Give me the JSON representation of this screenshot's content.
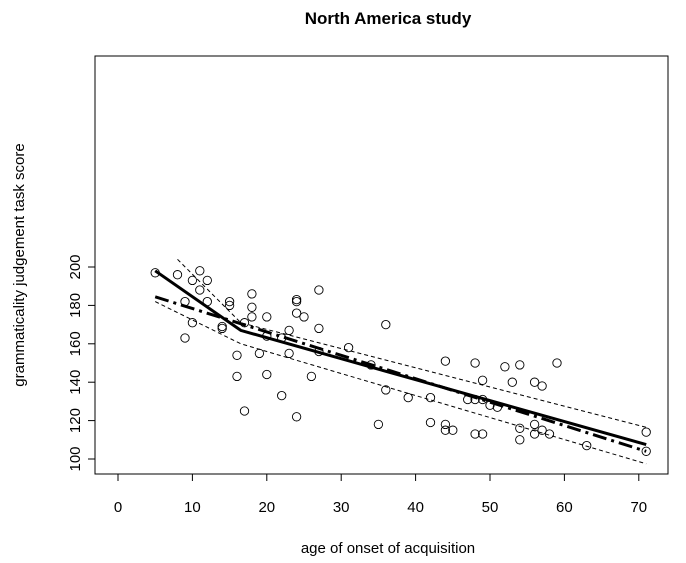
{
  "chart_data": {
    "type": "scatter",
    "title": "North America study",
    "xlabel": "age of onset of acquisition",
    "ylabel": "grammaticality judgement task score",
    "xlim": [
      0,
      73
    ],
    "ylim": [
      98,
      202
    ],
    "x_ticks": [
      "0",
      "10",
      "20",
      "30",
      "40",
      "50",
      "60",
      "70"
    ],
    "y_ticks": [
      "100",
      "120",
      "140",
      "160",
      "180",
      "200"
    ],
    "grid": false,
    "legend": "none",
    "points": [
      {
        "x": 5,
        "y": 197
      },
      {
        "x": 8,
        "y": 196
      },
      {
        "x": 9,
        "y": 182
      },
      {
        "x": 9,
        "y": 163
      },
      {
        "x": 10,
        "y": 193
      },
      {
        "x": 10,
        "y": 171
      },
      {
        "x": 11,
        "y": 198
      },
      {
        "x": 11,
        "y": 188
      },
      {
        "x": 12,
        "y": 193
      },
      {
        "x": 12,
        "y": 182
      },
      {
        "x": 14,
        "y": 168
      },
      {
        "x": 14,
        "y": 169
      },
      {
        "x": 15,
        "y": 182
      },
      {
        "x": 15,
        "y": 180
      },
      {
        "x": 16,
        "y": 154
      },
      {
        "x": 16,
        "y": 143
      },
      {
        "x": 17,
        "y": 171
      },
      {
        "x": 17,
        "y": 125
      },
      {
        "x": 18,
        "y": 186
      },
      {
        "x": 18,
        "y": 179
      },
      {
        "x": 18,
        "y": 174
      },
      {
        "x": 19,
        "y": 155
      },
      {
        "x": 20,
        "y": 174
      },
      {
        "x": 20,
        "y": 164
      },
      {
        "x": 20,
        "y": 144
      },
      {
        "x": 22,
        "y": 163
      },
      {
        "x": 22,
        "y": 133
      },
      {
        "x": 23,
        "y": 167
      },
      {
        "x": 23,
        "y": 155
      },
      {
        "x": 24,
        "y": 183
      },
      {
        "x": 24,
        "y": 182
      },
      {
        "x": 24,
        "y": 176
      },
      {
        "x": 24,
        "y": 122
      },
      {
        "x": 25,
        "y": 174
      },
      {
        "x": 26,
        "y": 143
      },
      {
        "x": 27,
        "y": 188
      },
      {
        "x": 27,
        "y": 168
      },
      {
        "x": 27,
        "y": 156
      },
      {
        "x": 31,
        "y": 158
      },
      {
        "x": 34,
        "y": 149
      },
      {
        "x": 35,
        "y": 118
      },
      {
        "x": 36,
        "y": 170
      },
      {
        "x": 36,
        "y": 136
      },
      {
        "x": 39,
        "y": 132
      },
      {
        "x": 42,
        "y": 132
      },
      {
        "x": 42,
        "y": 119
      },
      {
        "x": 44,
        "y": 151
      },
      {
        "x": 44,
        "y": 118
      },
      {
        "x": 44,
        "y": 115
      },
      {
        "x": 45,
        "y": 115
      },
      {
        "x": 47,
        "y": 131
      },
      {
        "x": 48,
        "y": 150
      },
      {
        "x": 48,
        "y": 131
      },
      {
        "x": 48,
        "y": 113
      },
      {
        "x": 49,
        "y": 141
      },
      {
        "x": 49,
        "y": 131
      },
      {
        "x": 49,
        "y": 113
      },
      {
        "x": 50,
        "y": 128
      },
      {
        "x": 51,
        "y": 127
      },
      {
        "x": 52,
        "y": 148
      },
      {
        "x": 53,
        "y": 140
      },
      {
        "x": 54,
        "y": 149
      },
      {
        "x": 54,
        "y": 116
      },
      {
        "x": 54,
        "y": 110
      },
      {
        "x": 56,
        "y": 140
      },
      {
        "x": 56,
        "y": 118
      },
      {
        "x": 56,
        "y": 113
      },
      {
        "x": 57,
        "y": 138
      },
      {
        "x": 57,
        "y": 115
      },
      {
        "x": 58,
        "y": 113
      },
      {
        "x": 59,
        "y": 150
      },
      {
        "x": 63,
        "y": 107
      },
      {
        "x": 71,
        "y": 114
      },
      {
        "x": 71,
        "y": 104
      }
    ],
    "series": [
      {
        "style": "solid",
        "width": 3,
        "x": [
          5,
          16.5,
          71
        ],
        "y": [
          198,
          167,
          107.5
        ]
      },
      {
        "style": "dashdot",
        "width": 3,
        "x": [
          5,
          71
        ],
        "y": [
          184.5,
          104
        ]
      },
      {
        "style": "dashed",
        "width": 1,
        "x": [
          8,
          16.5,
          71
        ],
        "y": [
          204,
          171,
          116.5
        ]
      },
      {
        "style": "dashed",
        "width": 1,
        "x": [
          5,
          16.5,
          71
        ],
        "y": [
          182,
          160,
          97.5
        ]
      }
    ]
  }
}
